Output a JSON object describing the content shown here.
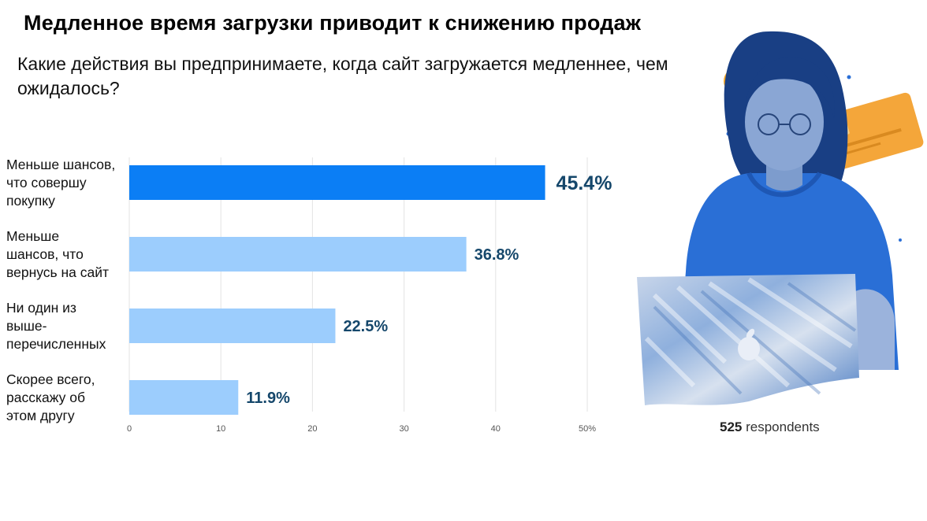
{
  "header": {
    "title": "Медленное время загрузки приводит к снижению продаж",
    "question": "Какие действия вы предпринимаете, когда сайт  загружается медленнее, чем ожидалось?"
  },
  "footer": {
    "respondents_count": "525",
    "respondents_label": "respondents"
  },
  "colors": {
    "highlight_bar": "#0b7ef5",
    "bar": "#9ccdfd",
    "value_label": "#15476b",
    "illustration_blue": "#2a6fd6",
    "card_orange": "#f4a63a"
  },
  "chart_data": {
    "type": "bar",
    "orientation": "horizontal",
    "categories": [
      "Меньше шансов, что совершу покупку",
      "Меньше шансов, что вернусь на сайт",
      "Ни один из выше-перечисленных",
      "Скорее всего, расскажу об этом другу"
    ],
    "category_lines": [
      [
        "Меньше шансов,",
        "что совершу",
        "покупку"
      ],
      [
        "Меньше",
        "шансов, что",
        "вернусь на сайт"
      ],
      [
        "Ни один из",
        "выше-",
        "перечисленных"
      ],
      [
        "Скорее всего,",
        "расскажу об",
        "этом другу"
      ]
    ],
    "values": [
      45.4,
      36.8,
      22.5,
      11.9
    ],
    "value_labels": [
      "45.4%",
      "36.8%",
      "22.5%",
      "11.9%"
    ],
    "xticks": [
      "0",
      "10",
      "20",
      "30",
      "40",
      "50%"
    ],
    "xlim": [
      0,
      50
    ],
    "highlight_index": 0,
    "grid": "vertical"
  }
}
